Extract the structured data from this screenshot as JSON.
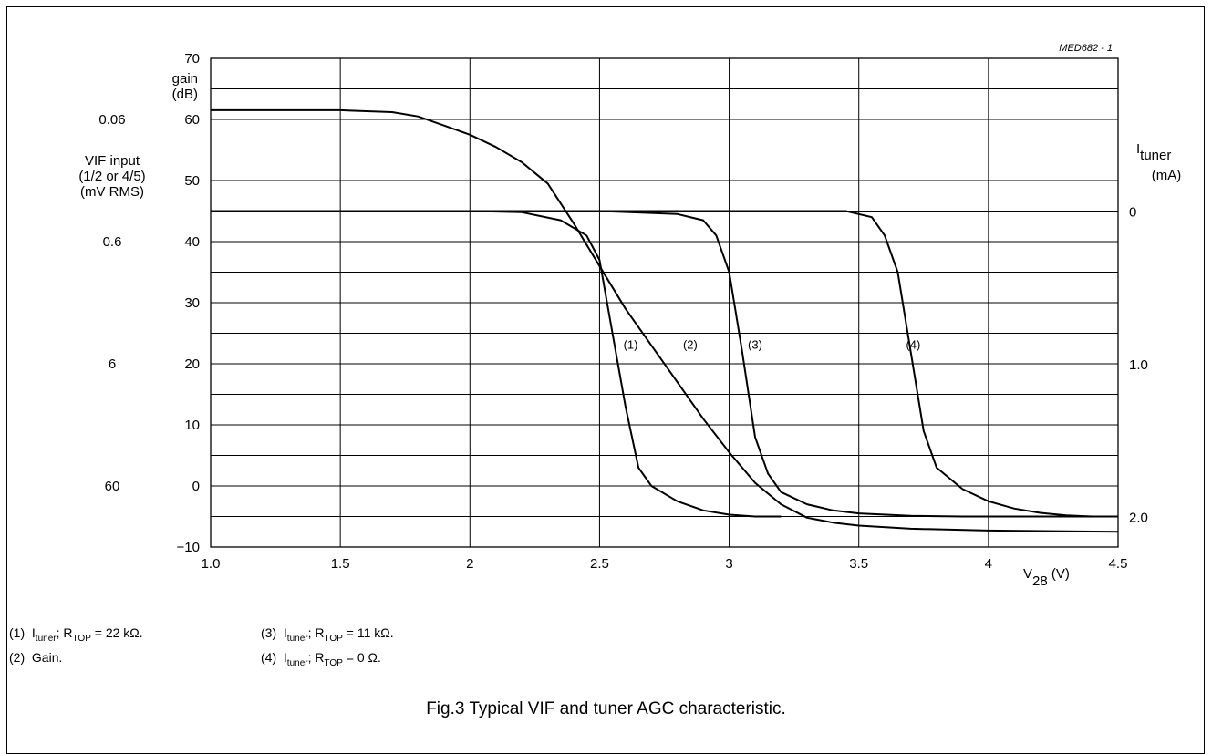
{
  "chart_data": {
    "type": "line",
    "code": "MED682 - 1",
    "x_axis": {
      "range": [
        1.0,
        4.5
      ],
      "ticks": [
        1.0,
        1.5,
        2,
        2.5,
        3,
        3.5,
        4,
        4.5
      ],
      "tick_labels": [
        "1.0",
        "1.5",
        "2",
        "2.5",
        "3",
        "3.5",
        "4",
        "4.5"
      ],
      "label_main": "V",
      "label_sub": "28",
      "label_unit": "(V)"
    },
    "y_left": {
      "range": [
        -10,
        70
      ],
      "ticks": [
        -10,
        0,
        10,
        20,
        30,
        40,
        50,
        60,
        70
      ],
      "tick_labels": [
        "−10",
        "0",
        "10",
        "20",
        "30",
        "40",
        "50",
        "60",
        "70"
      ],
      "label_line1": "gain",
      "label_line2": "(dB)",
      "grid_step": 5
    },
    "y_outer": {
      "label_lines": [
        "VIF input",
        "(1/2 or 4/5)",
        "(mV RMS)"
      ],
      "marks": [
        {
          "label": "0.06",
          "gain": 60
        },
        {
          "label": "0.6",
          "gain": 40
        },
        {
          "label": "6",
          "gain": 20
        },
        {
          "label": "60",
          "gain": 0
        }
      ]
    },
    "y_right": {
      "label_main": "I",
      "label_sub": "tuner",
      "label_unit": "(mA)",
      "marks": [
        {
          "label": "0",
          "gain": 45
        },
        {
          "label": "1.0",
          "gain": 20
        },
        {
          "label": "2.0",
          "gain": -5
        }
      ]
    },
    "series": [
      {
        "label": "(1)",
        "label_at": [
          2.62,
          22.5
        ],
        "points": [
          [
            1.0,
            45
          ],
          [
            2.0,
            45
          ],
          [
            2.2,
            44.8
          ],
          [
            2.35,
            43.5
          ],
          [
            2.45,
            41
          ],
          [
            2.5,
            37
          ],
          [
            2.55,
            25
          ],
          [
            2.6,
            13
          ],
          [
            2.65,
            3
          ],
          [
            2.7,
            0
          ],
          [
            2.8,
            -2.5
          ],
          [
            2.9,
            -4
          ],
          [
            3.0,
            -4.7
          ],
          [
            3.1,
            -5
          ],
          [
            3.2,
            -5
          ]
        ]
      },
      {
        "label": "(2)",
        "label_at": [
          2.85,
          22.5
        ],
        "points": [
          [
            1.0,
            61.5
          ],
          [
            1.5,
            61.5
          ],
          [
            1.7,
            61.2
          ],
          [
            1.8,
            60.5
          ],
          [
            1.9,
            59
          ],
          [
            2.0,
            57.5
          ],
          [
            2.1,
            55.5
          ],
          [
            2.2,
            53
          ],
          [
            2.3,
            49.5
          ],
          [
            2.4,
            43
          ],
          [
            2.5,
            36
          ],
          [
            2.6,
            29
          ],
          [
            2.7,
            23
          ],
          [
            2.8,
            17
          ],
          [
            2.9,
            11
          ],
          [
            3.0,
            5.5
          ],
          [
            3.1,
            0.5
          ],
          [
            3.2,
            -3
          ],
          [
            3.3,
            -5.2
          ],
          [
            3.4,
            -6
          ],
          [
            3.5,
            -6.5
          ],
          [
            3.7,
            -7
          ],
          [
            4.0,
            -7.3
          ],
          [
            4.5,
            -7.5
          ]
        ]
      },
      {
        "label": "(3)",
        "label_at": [
          3.1,
          22.5
        ],
        "points": [
          [
            2.5,
            45
          ],
          [
            2.8,
            44.5
          ],
          [
            2.9,
            43.5
          ],
          [
            2.95,
            41
          ],
          [
            3.0,
            35
          ],
          [
            3.05,
            22
          ],
          [
            3.1,
            8
          ],
          [
            3.15,
            2
          ],
          [
            3.2,
            -1
          ],
          [
            3.3,
            -3
          ],
          [
            3.4,
            -4
          ],
          [
            3.5,
            -4.5
          ],
          [
            3.7,
            -4.9
          ],
          [
            3.9,
            -5
          ],
          [
            4.5,
            -5
          ]
        ]
      },
      {
        "label": "(4)",
        "label_at": [
          3.71,
          22.5
        ],
        "points": [
          [
            1.0,
            45
          ],
          [
            3.45,
            45
          ],
          [
            3.55,
            44
          ],
          [
            3.6,
            41
          ],
          [
            3.65,
            35
          ],
          [
            3.7,
            22
          ],
          [
            3.75,
            9
          ],
          [
            3.8,
            3
          ],
          [
            3.9,
            -0.5
          ],
          [
            4.0,
            -2.5
          ],
          [
            4.1,
            -3.7
          ],
          [
            4.2,
            -4.4
          ],
          [
            4.3,
            -4.8
          ],
          [
            4.4,
            -5
          ],
          [
            4.5,
            -5
          ]
        ]
      }
    ]
  },
  "notes": [
    {
      "num": "(1)",
      "pre": "I",
      "sub": "tuner",
      "mid": "; R",
      "sub2": "TOP",
      "post": " = 22 kΩ."
    },
    {
      "num": "(2)",
      "text": "Gain."
    },
    {
      "num": "(3)",
      "pre": "I",
      "sub": "tuner",
      "mid": "; R",
      "sub2": "TOP",
      "post": " = 11 kΩ."
    },
    {
      "num": "(4)",
      "pre": "I",
      "sub": "tuner",
      "mid": "; R",
      "sub2": "TOP",
      "post": " = 0 Ω."
    }
  ],
  "caption": "Fig.3  Typical VIF and tuner AGC characteristic."
}
